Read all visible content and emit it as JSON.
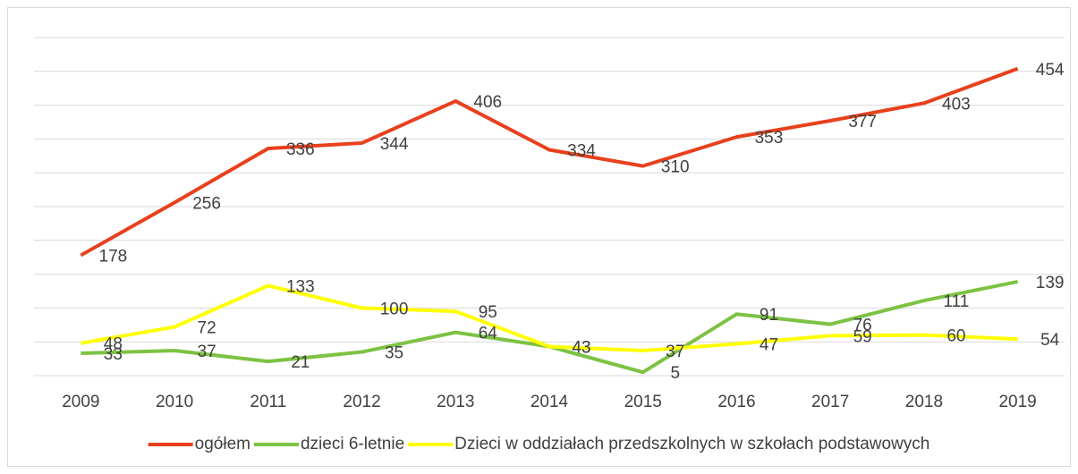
{
  "chart_data": {
    "type": "line",
    "categories": [
      "2009",
      "2010",
      "2011",
      "2012",
      "2013",
      "2014",
      "2015",
      "2016",
      "2017",
      "2018",
      "2019"
    ],
    "series": [
      {
        "name": "ogółem",
        "color": "#e8401c",
        "values": [
          178,
          256,
          336,
          344,
          406,
          334,
          310,
          353,
          377,
          403,
          454
        ]
      },
      {
        "name": "dzieci 6-letnie",
        "color": "#7dc242",
        "values": [
          33,
          37,
          21,
          35,
          64,
          43,
          5,
          91,
          76,
          111,
          139
        ]
      },
      {
        "name": "Dzieci w oddziałach przedszkolnych w szkołach podstawowych",
        "color": "#ffff00",
        "values": [
          48,
          72,
          133,
          100,
          95,
          43,
          37,
          47,
          59,
          60,
          54
        ]
      }
    ],
    "ylim": [
      0,
      500
    ],
    "yticks": [
      0,
      50,
      100,
      150,
      200,
      250,
      300,
      350,
      400,
      450,
      500
    ],
    "grid": true,
    "legend": "bottom"
  }
}
